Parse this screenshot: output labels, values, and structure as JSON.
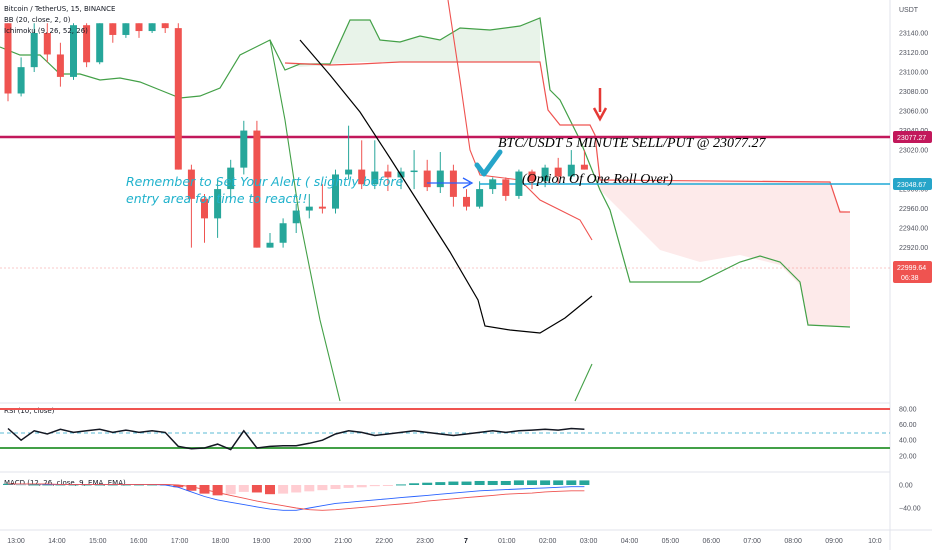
{
  "legend": {
    "symbol": "Bitcoin / TetherUS, 15, BINANCE",
    "bb": "BB (20, close, 2, 0)",
    "ichimoku": "Ichimoku (9, 26, 52, 26)",
    "rsi": "RSI (10, close)",
    "macd": "MACD (12, 26, close, 9, EMA, EMA)"
  },
  "price_axis": {
    "currency": "USDT",
    "ticks": [
      "23140.00",
      "23120.00",
      "23100.00",
      "23080.00",
      "23060.00",
      "23040.00",
      "23020.00",
      "22980.00",
      "22960.00",
      "22940.00",
      "22920.00"
    ]
  },
  "rsi_axis": {
    "ticks": [
      "80.00",
      "60.00",
      "40.00",
      "20.00"
    ]
  },
  "macd_axis": {
    "ticks": [
      "0.00",
      "−40.00"
    ]
  },
  "time_axis": {
    "labels": [
      "13:00",
      "14:00",
      "15:00",
      "16:00",
      "17:00",
      "18:00",
      "19:00",
      "20:00",
      "21:00",
      "22:00",
      "23:00",
      "7",
      "01:00",
      "02:00",
      "03:00",
      "04:00",
      "05:00",
      "06:00",
      "07:00",
      "08:00",
      "09:00",
      "10:0"
    ]
  },
  "badges": {
    "entry": {
      "value": "23077.27",
      "color": "#c2185b"
    },
    "alert": {
      "value": "23048.67",
      "color": "#26a5c9"
    },
    "last": {
      "value": "22999.64",
      "countdown": "06:38",
      "color": "#ef5350"
    }
  },
  "annotations": {
    "title": "BTC/USDT 5 MINUTE SELL/PUT @ 23077.27",
    "subtitle": "(Option Of One Roll Over)",
    "note_line1": "Remember to Set Your Alert ( slightly before",
    "note_line2": "entry area for time to react!!"
  },
  "colors": {
    "up": "#26a69a",
    "down": "#ef5350",
    "entry_line": "#c2185b",
    "alert_line": "#1fa9d6",
    "rsi_band": "#ef5350",
    "rsi_low": "#43a047",
    "cloud_bull": "#43a047",
    "cloud_bear": "#ef5350"
  },
  "chart_data": {
    "type": "candlestick",
    "timeframe": "15",
    "price_levels": {
      "entry": 23077.27,
      "alert": 23048.67,
      "last": 22999.64
    },
    "ylim": [
      22920,
      23150
    ],
    "candles": [
      {
        "o": 23150,
        "h": 23150,
        "l": 23070,
        "c": 23078
      },
      {
        "o": 23078,
        "h": 23115,
        "l": 23075,
        "c": 23105
      },
      {
        "o": 23105,
        "h": 23150,
        "l": 23100,
        "c": 23140
      },
      {
        "o": 23140,
        "h": 23150,
        "l": 23110,
        "c": 23118
      },
      {
        "o": 23118,
        "h": 23130,
        "l": 23085,
        "c": 23095
      },
      {
        "o": 23095,
        "h": 23150,
        "l": 23092,
        "c": 23148
      },
      {
        "o": 23148,
        "h": 23150,
        "l": 23105,
        "c": 23110
      },
      {
        "o": 23110,
        "h": 23150,
        "l": 23108,
        "c": 23150
      },
      {
        "o": 23150,
        "h": 23150,
        "l": 23130,
        "c": 23138
      },
      {
        "o": 23138,
        "h": 23150,
        "l": 23135,
        "c": 23150
      },
      {
        "o": 23150,
        "h": 23150,
        "l": 23135,
        "c": 23142
      },
      {
        "o": 23142,
        "h": 23150,
        "l": 23140,
        "c": 23150
      },
      {
        "o": 23150,
        "h": 23150,
        "l": 23140,
        "c": 23145
      },
      {
        "o": 23145,
        "h": 23150,
        "l": 23000,
        "c": 23000
      },
      {
        "o": 23000,
        "h": 23005,
        "l": 22920,
        "c": 22970
      },
      {
        "o": 22970,
        "h": 22975,
        "l": 22925,
        "c": 22950
      },
      {
        "o": 22950,
        "h": 22990,
        "l": 22930,
        "c": 22980
      },
      {
        "o": 22980,
        "h": 23010,
        "l": 22970,
        "c": 23002
      },
      {
        "o": 23002,
        "h": 23050,
        "l": 22995,
        "c": 23040
      },
      {
        "o": 23040,
        "h": 23050,
        "l": 22920,
        "c": 22920
      },
      {
        "o": 22920,
        "h": 22935,
        "l": 22920,
        "c": 22925
      },
      {
        "o": 22925,
        "h": 22950,
        "l": 22920,
        "c": 22945
      },
      {
        "o": 22945,
        "h": 22965,
        "l": 22935,
        "c": 22958
      },
      {
        "o": 22958,
        "h": 22975,
        "l": 22950,
        "c": 22962
      },
      {
        "o": 22962,
        "h": 22985,
        "l": 22955,
        "c": 22960
      },
      {
        "o": 22960,
        "h": 23000,
        "l": 22955,
        "c": 22995
      },
      {
        "o": 22995,
        "h": 23045,
        "l": 22990,
        "c": 23000
      },
      {
        "o": 23000,
        "h": 23030,
        "l": 22980,
        "c": 22985
      },
      {
        "o": 22985,
        "h": 23030,
        "l": 22980,
        "c": 22998
      },
      {
        "o": 22998,
        "h": 23005,
        "l": 22978,
        "c": 22992
      },
      {
        "o": 22992,
        "h": 23002,
        "l": 22980,
        "c": 22998
      },
      {
        "o": 22998,
        "h": 23020,
        "l": 22980,
        "c": 22999
      },
      {
        "o": 22999,
        "h": 23010,
        "l": 22978,
        "c": 22982
      },
      {
        "o": 22982,
        "h": 23018,
        "l": 22976,
        "c": 22999
      },
      {
        "o": 22999,
        "h": 23005,
        "l": 22962,
        "c": 22972
      },
      {
        "o": 22972,
        "h": 22980,
        "l": 22958,
        "c": 22962
      },
      {
        "o": 22962,
        "h": 22988,
        "l": 22960,
        "c": 22980
      },
      {
        "o": 22980,
        "h": 22992,
        "l": 22975,
        "c": 22990
      },
      {
        "o": 22990,
        "h": 22992,
        "l": 22968,
        "c": 22973
      },
      {
        "o": 22973,
        "h": 23000,
        "l": 22970,
        "c": 22998
      },
      {
        "o": 22998,
        "h": 23000,
        "l": 22980,
        "c": 22988
      },
      {
        "o": 22988,
        "h": 23005,
        "l": 22982,
        "c": 23002
      },
      {
        "o": 23002,
        "h": 23012,
        "l": 22985,
        "c": 22993
      },
      {
        "o": 22993,
        "h": 23020,
        "l": 22990,
        "c": 23005
      },
      {
        "o": 23005,
        "h": 23020,
        "l": 23000,
        "c": 23000
      }
    ],
    "rsi": [
      55,
      40,
      52,
      48,
      54,
      50,
      52,
      54,
      50,
      53,
      50,
      52,
      50,
      32,
      29,
      30,
      35,
      28,
      52,
      30,
      32,
      33,
      33,
      36,
      40,
      48,
      52,
      50,
      46,
      48,
      50,
      52,
      50,
      48,
      46,
      48,
      50,
      52,
      50,
      52,
      53,
      54,
      53,
      55,
      54
    ],
    "macd_hist": [
      2,
      1,
      1,
      1,
      1,
      1,
      1,
      1,
      1,
      1,
      1,
      1,
      1,
      -4,
      -10,
      -15,
      -18,
      -16,
      -12,
      -13,
      -16,
      -15,
      -13,
      -11,
      -9,
      -7,
      -5,
      -4,
      -2,
      -1,
      1,
      3,
      4,
      5,
      6,
      6,
      7,
      7,
      7,
      8,
      8,
      8,
      8,
      8,
      8
    ],
    "macd_line": [
      2,
      2,
      2,
      1,
      1,
      1,
      1,
      1,
      1,
      1,
      1,
      1,
      0,
      -4,
      -12,
      -20,
      -26,
      -30,
      -34,
      -38,
      -42,
      -44,
      -44,
      -40,
      -36,
      -32,
      -30,
      -28,
      -26,
      -24,
      -22,
      -20,
      -18,
      -16,
      -14,
      -12,
      -10,
      -9,
      -8,
      -7,
      -6,
      -5,
      -4,
      -3,
      -3
    ],
    "macd_signal": [
      2,
      2,
      2,
      2,
      1,
      1,
      1,
      1,
      1,
      1,
      1,
      1,
      1,
      0,
      -3,
      -8,
      -13,
      -18,
      -23,
      -28,
      -32,
      -36,
      -40,
      -43,
      -44,
      -43,
      -41,
      -39,
      -37,
      -35,
      -33,
      -31,
      -28,
      -26,
      -24,
      -22,
      -20,
      -18,
      -16,
      -15,
      -14,
      -12,
      -11,
      -10,
      -10
    ]
  }
}
